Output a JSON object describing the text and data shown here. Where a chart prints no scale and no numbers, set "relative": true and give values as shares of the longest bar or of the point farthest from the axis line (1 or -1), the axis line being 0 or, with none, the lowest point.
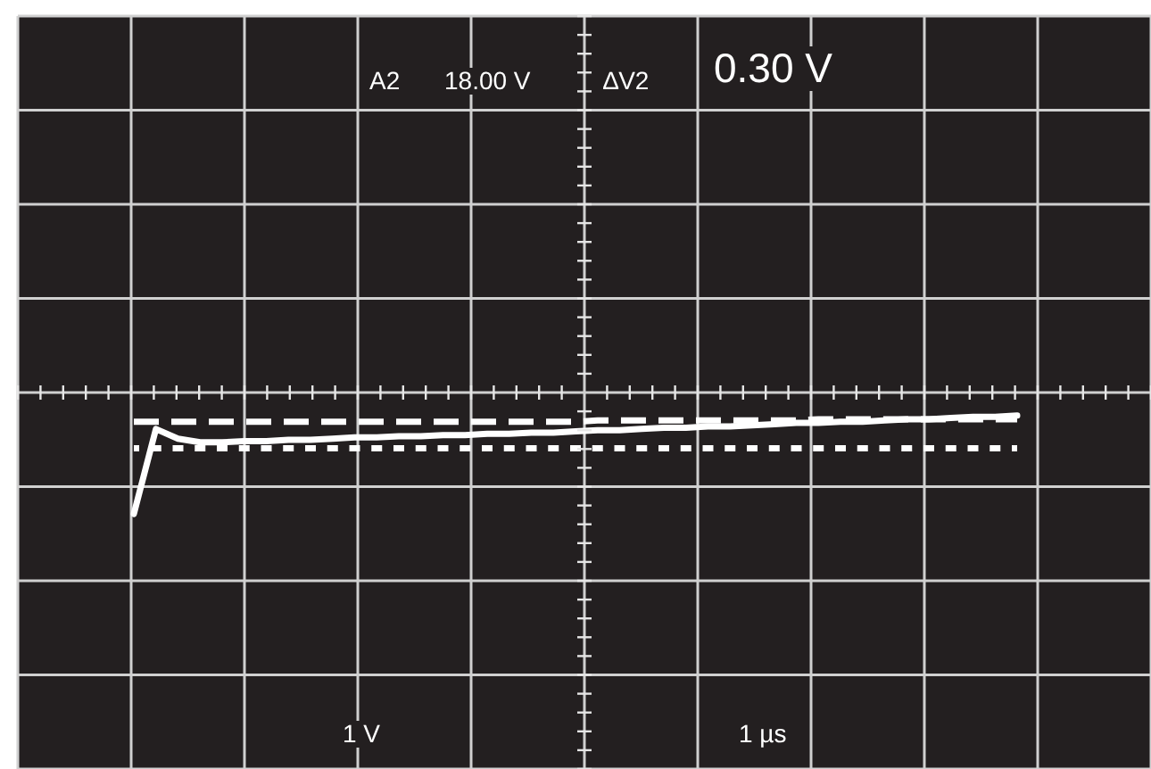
{
  "chart_data": {
    "type": "line",
    "relative": true,
    "grid": true,
    "marker": "none",
    "annotations": [
      "A2",
      "18.00 V",
      "∆V2",
      "0.30 V",
      "1 V",
      "1 µs"
    ],
    "categories": [
      null,
      null,
      null,
      null,
      null,
      null,
      null,
      null,
      null,
      null,
      null,
      null,
      null,
      null,
      null,
      null,
      null,
      null,
      null,
      null,
      null,
      null,
      null,
      null,
      null,
      null,
      null,
      null,
      null,
      null,
      null,
      null,
      null,
      null,
      null,
      null,
      null,
      null,
      null,
      null,
      null
    ],
    "series": [
      {
        "color": "#ffffff",
        "line_style": "solid",
        "values": [
          -1,
          -0.3,
          -0.38,
          -0.41,
          -0.41,
          -0.4,
          -0.4,
          -0.39,
          -0.39,
          -0.38,
          -0.37,
          -0.37,
          -0.36,
          -0.36,
          -0.35,
          -0.35,
          -0.34,
          -0.34,
          -0.33,
          -0.33,
          -0.32,
          -0.31,
          -0.31,
          -0.3,
          -0.29,
          -0.29,
          -0.28,
          -0.28,
          -0.27,
          -0.26,
          -0.25,
          -0.25,
          -0.24,
          -0.24,
          -0.23,
          -0.22,
          -0.22,
          -0.21,
          -0.2,
          -0.2,
          -0.19
        ]
      },
      {
        "color": "#ffffff",
        "line_style": "dashed",
        "values": [
          -0.24,
          -0.24,
          -0.24,
          -0.24,
          -0.24,
          -0.24,
          -0.24,
          -0.24,
          -0.24,
          -0.24,
          -0.24,
          -0.24,
          -0.24,
          -0.24,
          -0.24,
          -0.24,
          -0.24,
          -0.24,
          -0.24,
          -0.24,
          -0.24,
          -0.23,
          -0.23,
          -0.23,
          -0.23,
          -0.23,
          -0.23,
          -0.23,
          -0.23,
          -0.23,
          -0.23,
          -0.22,
          -0.22,
          -0.22,
          -0.22,
          -0.22,
          -0.22,
          -0.22,
          -0.22,
          -0.22,
          -0.22
        ]
      },
      {
        "color": "#ffffff",
        "line_style": "dotted",
        "values": [
          -0.46,
          -0.46,
          -0.46,
          -0.46,
          -0.46,
          -0.46,
          -0.46,
          -0.46,
          -0.46,
          -0.46,
          -0.46,
          -0.46,
          -0.46,
          -0.46,
          -0.46,
          -0.46,
          -0.46,
          -0.46,
          -0.46,
          -0.46,
          -0.46,
          -0.46,
          -0.46,
          -0.46,
          -0.46,
          -0.46,
          -0.46,
          -0.46,
          -0.46,
          -0.46,
          -0.46,
          -0.46,
          -0.46,
          -0.46,
          -0.46,
          -0.46,
          -0.46,
          -0.46,
          -0.46,
          -0.46,
          -0.46
        ]
      }
    ]
  }
}
